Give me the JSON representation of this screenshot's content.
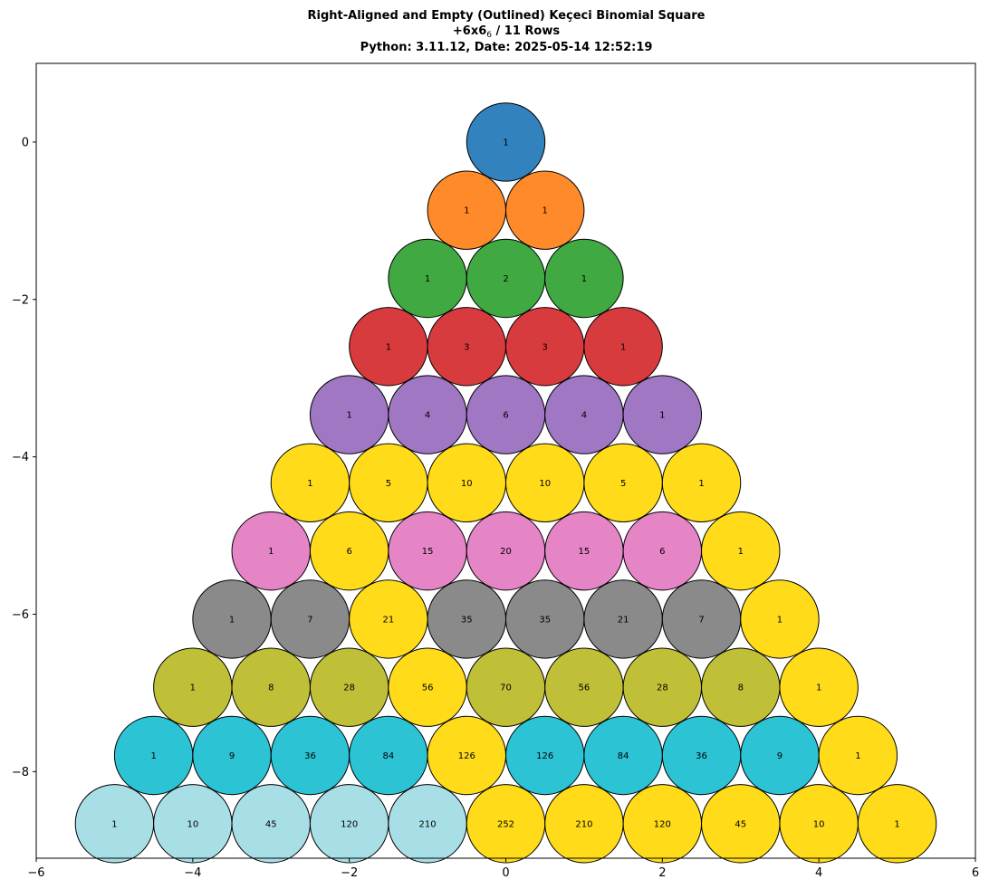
{
  "title_lines": [
    "Right-Aligned and Empty (Outlined) Keçeci Binomial Square",
    "+6x6",
    "6",
    " / 11 Rows",
    "Python: 3.11.12, Date: 2025-05-14 12:52:19"
  ],
  "chart_data": {
    "type": "scatter",
    "title": "Right-Aligned and Empty (Outlined) Keçeci Binomial Square +6x6₆ / 11 Rows Python: 3.11.12, Date: 2025-05-14 12:52:19",
    "xlim": [
      -6,
      6
    ],
    "ylim": [
      -9.1,
      1.0
    ],
    "x_ticks": [
      -6,
      -4,
      -2,
      0,
      2,
      4,
      6
    ],
    "y_ticks": [
      0,
      -2,
      -4,
      -6,
      -8
    ],
    "x_tick_labels": [
      "−6",
      "−4",
      "−2",
      "0",
      "2",
      "4",
      "6"
    ],
    "y_tick_labels": [
      "0",
      "−2",
      "−4",
      "−6",
      "−8"
    ],
    "grid": false,
    "rows": [
      [
        1
      ],
      [
        1,
        1
      ],
      [
        1,
        2,
        1
      ],
      [
        1,
        3,
        3,
        1
      ],
      [
        1,
        4,
        6,
        4,
        1
      ],
      [
        1,
        5,
        10,
        10,
        5,
        1
      ],
      [
        1,
        6,
        15,
        20,
        15,
        6,
        1
      ],
      [
        1,
        7,
        21,
        35,
        35,
        21,
        7,
        1
      ],
      [
        1,
        8,
        28,
        56,
        70,
        56,
        28,
        8,
        1
      ],
      [
        1,
        9,
        36,
        84,
        126,
        126,
        84,
        36,
        9,
        1
      ],
      [
        1,
        10,
        45,
        120,
        210,
        252,
        210,
        120,
        45,
        10,
        1
      ]
    ],
    "row_colors": [
      "#3182bd",
      "#ff8a2a",
      "#41a942",
      "#d83b3e",
      "#a077c2",
      "#ffdb1a",
      "#e585c6",
      "#8a8a8a",
      "#c0c038",
      "#2cc3d4",
      "#a8dfe6"
    ],
    "highlight_color": "#ffdb1a",
    "highlighted": [
      [
        5,
        0
      ],
      [
        5,
        1
      ],
      [
        5,
        2
      ],
      [
        5,
        3
      ],
      [
        5,
        4
      ],
      [
        5,
        5
      ],
      [
        6,
        1
      ],
      [
        6,
        6
      ],
      [
        7,
        2
      ],
      [
        7,
        7
      ],
      [
        8,
        3
      ],
      [
        8,
        8
      ],
      [
        9,
        4
      ],
      [
        9,
        9
      ],
      [
        10,
        5
      ],
      [
        10,
        6
      ],
      [
        10,
        7
      ],
      [
        10,
        8
      ],
      [
        10,
        9
      ],
      [
        10,
        10
      ]
    ],
    "square_size": 6,
    "total_rows": 11
  }
}
